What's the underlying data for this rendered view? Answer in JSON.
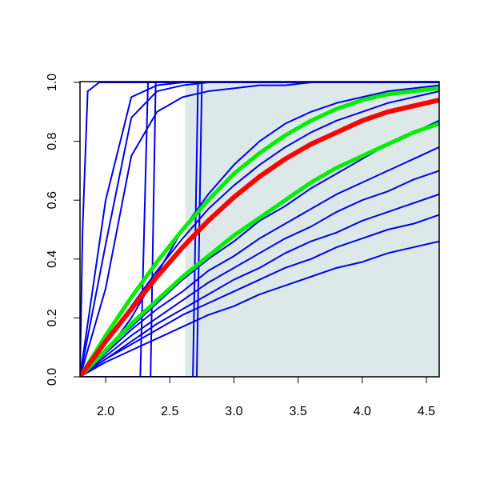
{
  "chart_data": {
    "type": "line",
    "xlim": [
      1.8,
      4.6
    ],
    "ylim": [
      0,
      1
    ],
    "xticks": [
      {
        "value": 2.0,
        "label": "2.0"
      },
      {
        "value": 2.5,
        "label": "2.5"
      },
      {
        "value": 3.0,
        "label": "3.0"
      },
      {
        "value": 3.5,
        "label": "3.5"
      },
      {
        "value": 4.0,
        "label": "4.0"
      },
      {
        "value": 4.5,
        "label": "4.5"
      }
    ],
    "yticks": [
      {
        "value": 0,
        "label": "0.0"
      },
      {
        "value": 0.2,
        "label": "0.2"
      },
      {
        "value": 0.4,
        "label": "0.4"
      },
      {
        "value": 0.6,
        "label": "0.6"
      },
      {
        "value": 0.8,
        "label": "0.8"
      },
      {
        "value": 1,
        "label": "1.0"
      }
    ],
    "shaded_region": {
      "x": [
        2.62,
        4.6
      ],
      "color": "#dde9e9"
    },
    "x": [
      1.8,
      2.0,
      2.2,
      2.4,
      2.6,
      2.8,
      3.0,
      3.2,
      3.4,
      3.6,
      3.8,
      4.0,
      4.2,
      4.4,
      4.6
    ],
    "series": [
      {
        "color": "#0000ee",
        "x": [
          1.8,
          1.82,
          1.86,
          1.95,
          4.6
        ],
        "values": [
          0,
          0.5,
          0.97,
          1,
          1
        ]
      },
      {
        "color": "#0000ee",
        "values": [
          0,
          0.6,
          0.95,
          0.99,
          1,
          1,
          1,
          1,
          1,
          1,
          1,
          1,
          1,
          1,
          1
        ]
      },
      {
        "color": "#0000ee",
        "values": [
          0,
          0.45,
          0.88,
          0.97,
          0.99,
          1,
          1,
          1,
          1,
          1,
          1,
          1,
          1,
          1,
          1
        ]
      },
      {
        "color": "#0000ee",
        "values": [
          0,
          0.3,
          0.75,
          0.9,
          0.95,
          0.97,
          0.98,
          0.99,
          0.99,
          1,
          1,
          1,
          1,
          1,
          1
        ]
      },
      {
        "color": "#0000ee",
        "x": [
          1.8,
          2.27,
          2.3,
          2.33,
          4.6
        ],
        "values": [
          0,
          0,
          0.5,
          1,
          1
        ]
      },
      {
        "color": "#0000ee",
        "x": [
          1.8,
          2.35,
          2.37,
          2.39,
          4.6
        ],
        "values": [
          0,
          0,
          0.5,
          1,
          1
        ]
      },
      {
        "color": "#0000ee",
        "x": [
          1.8,
          2.68,
          2.7,
          2.72,
          4.6
        ],
        "values": [
          0,
          0,
          0.5,
          1,
          1
        ]
      },
      {
        "color": "#0000ee",
        "x": [
          1.8,
          2.71,
          2.73,
          2.75,
          4.6
        ],
        "values": [
          0,
          0,
          0.5,
          1,
          1
        ]
      },
      {
        "color": "#0000ee",
        "values": [
          0,
          0.08,
          0.2,
          0.35,
          0.5,
          0.62,
          0.72,
          0.8,
          0.86,
          0.9,
          0.93,
          0.95,
          0.97,
          0.98,
          0.99
        ]
      },
      {
        "color": "#0000ee",
        "values": [
          0,
          0.12,
          0.24,
          0.36,
          0.47,
          0.57,
          0.65,
          0.72,
          0.78,
          0.83,
          0.87,
          0.9,
          0.93,
          0.95,
          0.97
        ]
      },
      {
        "color": "#0000ee",
        "values": [
          0,
          0.09,
          0.17,
          0.25,
          0.33,
          0.4,
          0.46,
          0.53,
          0.58,
          0.64,
          0.69,
          0.74,
          0.79,
          0.83,
          0.87
        ]
      },
      {
        "color": "#0000ee",
        "values": [
          0,
          0.08,
          0.16,
          0.23,
          0.29,
          0.36,
          0.41,
          0.47,
          0.52,
          0.57,
          0.62,
          0.66,
          0.7,
          0.74,
          0.78
        ]
      },
      {
        "color": "#0000ee",
        "values": [
          0,
          0.07,
          0.14,
          0.2,
          0.26,
          0.32,
          0.37,
          0.42,
          0.47,
          0.51,
          0.56,
          0.6,
          0.63,
          0.67,
          0.7
        ]
      },
      {
        "color": "#0000ee",
        "values": [
          0,
          0.06,
          0.12,
          0.18,
          0.23,
          0.28,
          0.33,
          0.37,
          0.42,
          0.46,
          0.49,
          0.53,
          0.56,
          0.59,
          0.62
        ]
      },
      {
        "color": "#0000ee",
        "values": [
          0,
          0.06,
          0.11,
          0.16,
          0.21,
          0.25,
          0.29,
          0.33,
          0.37,
          0.4,
          0.44,
          0.47,
          0.5,
          0.52,
          0.55
        ]
      },
      {
        "color": "#0000ee",
        "values": [
          0,
          0.05,
          0.09,
          0.13,
          0.17,
          0.21,
          0.24,
          0.28,
          0.31,
          0.34,
          0.37,
          0.39,
          0.42,
          0.44,
          0.46
        ]
      },
      {
        "color": "#00ee00",
        "width": 5,
        "values": [
          0,
          0.14,
          0.27,
          0.39,
          0.5,
          0.6,
          0.69,
          0.76,
          0.82,
          0.87,
          0.91,
          0.94,
          0.96,
          0.97,
          0.98
        ]
      },
      {
        "color": "#00ee00",
        "width": 5,
        "values": [
          0,
          0.09,
          0.18,
          0.26,
          0.34,
          0.41,
          0.48,
          0.54,
          0.6,
          0.66,
          0.71,
          0.75,
          0.79,
          0.83,
          0.86
        ]
      },
      {
        "color": "#ff0000",
        "width": 6,
        "values": [
          0,
          0.12,
          0.23,
          0.34,
          0.44,
          0.53,
          0.61,
          0.68,
          0.74,
          0.79,
          0.83,
          0.87,
          0.9,
          0.92,
          0.94
        ]
      }
    ]
  }
}
